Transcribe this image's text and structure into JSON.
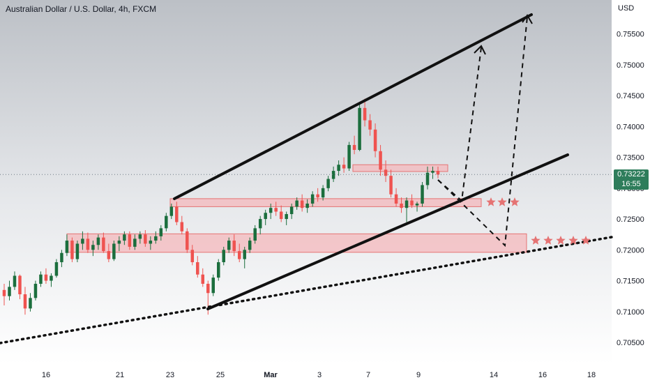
{
  "chart_data": {
    "type": "candlestick",
    "title": "Australian Dollar / U.S. Dollar, 4h, FXCM",
    "currency": "USD",
    "current_price": "0.73222",
    "countdown": "16:55",
    "y_ticks": [
      "0.75500",
      "0.75000",
      "0.74500",
      "0.74000",
      "0.73500",
      "0.73000",
      "0.72500",
      "0.72000",
      "0.71500",
      "0.71000",
      "0.70500"
    ],
    "y_tick_values": [
      0.755,
      0.75,
      0.745,
      0.74,
      0.735,
      0.73,
      0.725,
      0.72,
      0.715,
      0.71,
      0.705
    ],
    "x_ticks": [
      "16",
      "21",
      "23",
      "25",
      "Mar",
      "3",
      "7",
      "9",
      "14",
      "16",
      "18"
    ],
    "ylim": [
      0.7015,
      0.7605
    ],
    "colors": {
      "up": "#26a69a",
      "up_dark": "#1b5e20",
      "down": "#ef5350",
      "zone_fill": "#f4b8bc",
      "zone_stroke": "#e57373",
      "star": "#e57373"
    },
    "candles": [
      [
        0.7135,
        0.7145,
        0.711,
        0.7125
      ],
      [
        0.7125,
        0.715,
        0.7118,
        0.714
      ],
      [
        0.714,
        0.7165,
        0.7135,
        0.7158
      ],
      [
        0.7158,
        0.716,
        0.712,
        0.7128
      ],
      [
        0.7128,
        0.714,
        0.7095,
        0.7105
      ],
      [
        0.7105,
        0.713,
        0.71,
        0.7122
      ],
      [
        0.7122,
        0.715,
        0.7118,
        0.7145
      ],
      [
        0.7145,
        0.7165,
        0.714,
        0.716
      ],
      [
        0.716,
        0.717,
        0.7145,
        0.715
      ],
      [
        0.715,
        0.7162,
        0.714,
        0.7158
      ],
      [
        0.7158,
        0.7185,
        0.7155,
        0.718
      ],
      [
        0.718,
        0.72,
        0.7172,
        0.7195
      ],
      [
        0.7195,
        0.7225,
        0.719,
        0.7215
      ],
      [
        0.7215,
        0.722,
        0.718,
        0.7185
      ],
      [
        0.7185,
        0.7215,
        0.718,
        0.721
      ],
      [
        0.721,
        0.723,
        0.72,
        0.7218
      ],
      [
        0.7218,
        0.7228,
        0.7195,
        0.72
      ],
      [
        0.72,
        0.7215,
        0.719,
        0.7208
      ],
      [
        0.7208,
        0.7225,
        0.72,
        0.722
      ],
      [
        0.722,
        0.7228,
        0.7195,
        0.7198
      ],
      [
        0.7198,
        0.721,
        0.718,
        0.7185
      ],
      [
        0.7185,
        0.7215,
        0.7182,
        0.721
      ],
      [
        0.721,
        0.7222,
        0.7198,
        0.7215
      ],
      [
        0.7215,
        0.723,
        0.7208,
        0.7225
      ],
      [
        0.7225,
        0.723,
        0.72,
        0.7205
      ],
      [
        0.7205,
        0.7225,
        0.72,
        0.7218
      ],
      [
        0.7218,
        0.723,
        0.721,
        0.7225
      ],
      [
        0.7225,
        0.7232,
        0.7205,
        0.721
      ],
      [
        0.721,
        0.7222,
        0.72,
        0.7215
      ],
      [
        0.7215,
        0.723,
        0.721,
        0.7222
      ],
      [
        0.7222,
        0.724,
        0.7215,
        0.7235
      ],
      [
        0.7235,
        0.726,
        0.723,
        0.7255
      ],
      [
        0.7255,
        0.7275,
        0.725,
        0.727
      ],
      [
        0.727,
        0.7278,
        0.724,
        0.7245
      ],
      [
        0.7245,
        0.7255,
        0.7225,
        0.723
      ],
      [
        0.723,
        0.7235,
        0.7195,
        0.72
      ],
      [
        0.72,
        0.7208,
        0.7175,
        0.718
      ],
      [
        0.718,
        0.719,
        0.7155,
        0.716
      ],
      [
        0.716,
        0.717,
        0.714,
        0.7145
      ],
      [
        0.7145,
        0.715,
        0.7095,
        0.713
      ],
      [
        0.713,
        0.716,
        0.7125,
        0.7155
      ],
      [
        0.7155,
        0.7185,
        0.715,
        0.718
      ],
      [
        0.718,
        0.7205,
        0.7175,
        0.72
      ],
      [
        0.72,
        0.722,
        0.7195,
        0.7215
      ],
      [
        0.7215,
        0.7225,
        0.719,
        0.7198
      ],
      [
        0.7198,
        0.721,
        0.718,
        0.7185
      ],
      [
        0.7185,
        0.7205,
        0.717,
        0.72
      ],
      [
        0.72,
        0.722,
        0.7195,
        0.7215
      ],
      [
        0.7215,
        0.724,
        0.721,
        0.7235
      ],
      [
        0.7235,
        0.7255,
        0.7225,
        0.725
      ],
      [
        0.725,
        0.7265,
        0.724,
        0.726
      ],
      [
        0.726,
        0.7275,
        0.725,
        0.7268
      ],
      [
        0.7268,
        0.7278,
        0.7255,
        0.7262
      ],
      [
        0.7262,
        0.7272,
        0.7245,
        0.725
      ],
      [
        0.725,
        0.7262,
        0.724,
        0.7258
      ],
      [
        0.7258,
        0.7275,
        0.725,
        0.727
      ],
      [
        0.727,
        0.7285,
        0.7265,
        0.728
      ],
      [
        0.728,
        0.729,
        0.7262,
        0.7268
      ],
      [
        0.7268,
        0.7282,
        0.726,
        0.7275
      ],
      [
        0.7275,
        0.7295,
        0.727,
        0.729
      ],
      [
        0.729,
        0.73,
        0.7278,
        0.7285
      ],
      [
        0.7285,
        0.7305,
        0.728,
        0.73
      ],
      [
        0.73,
        0.732,
        0.7295,
        0.7315
      ],
      [
        0.7315,
        0.7335,
        0.731,
        0.7328
      ],
      [
        0.7328,
        0.7345,
        0.732,
        0.7338
      ],
      [
        0.7338,
        0.735,
        0.7325,
        0.7332
      ],
      [
        0.7332,
        0.7375,
        0.7328,
        0.737
      ],
      [
        0.737,
        0.7385,
        0.7355,
        0.7362
      ],
      [
        0.7362,
        0.744,
        0.736,
        0.743
      ],
      [
        0.743,
        0.7445,
        0.74,
        0.741
      ],
      [
        0.741,
        0.742,
        0.7385,
        0.7395
      ],
      [
        0.7395,
        0.7405,
        0.735,
        0.736
      ],
      [
        0.736,
        0.737,
        0.732,
        0.733
      ],
      [
        0.733,
        0.7345,
        0.731,
        0.732
      ],
      [
        0.732,
        0.733,
        0.7285,
        0.729
      ],
      [
        0.729,
        0.73,
        0.727,
        0.7275
      ],
      [
        0.7275,
        0.7285,
        0.726,
        0.7268
      ],
      [
        0.7268,
        0.7285,
        0.7245,
        0.728
      ],
      [
        0.728,
        0.729,
        0.7268,
        0.7272
      ],
      [
        0.7272,
        0.7278,
        0.7262,
        0.7275
      ],
      [
        0.7275,
        0.731,
        0.727,
        0.7305
      ],
      [
        0.7305,
        0.7335,
        0.7298,
        0.7325
      ],
      [
        0.7325,
        0.7335,
        0.7315,
        0.7328
      ],
      [
        0.7328,
        0.7335,
        0.7316,
        0.7322
      ]
    ],
    "annotations": {
      "channel_upper": [
        [
          0,
          0.7283
        ],
        [
          1,
          0.759
        ]
      ],
      "channel_lower": [
        [
          0,
          0.71
        ],
        [
          1,
          0.7355
        ]
      ],
      "dotted_support": [
        [
          0,
          0.7045
        ],
        [
          1,
          0.7215
        ]
      ],
      "zones": [
        {
          "from": 0.0,
          "to": 0.73,
          "y_top": 0.7283,
          "y_bottom": 0.727
        },
        {
          "from": 0.0,
          "to": 1.0,
          "y_top": 0.7226,
          "y_bottom": 0.7196
        },
        {
          "from": 0.0,
          "to": 0.34,
          "y_top": 0.7338,
          "y_bottom": 0.7327
        }
      ]
    }
  }
}
